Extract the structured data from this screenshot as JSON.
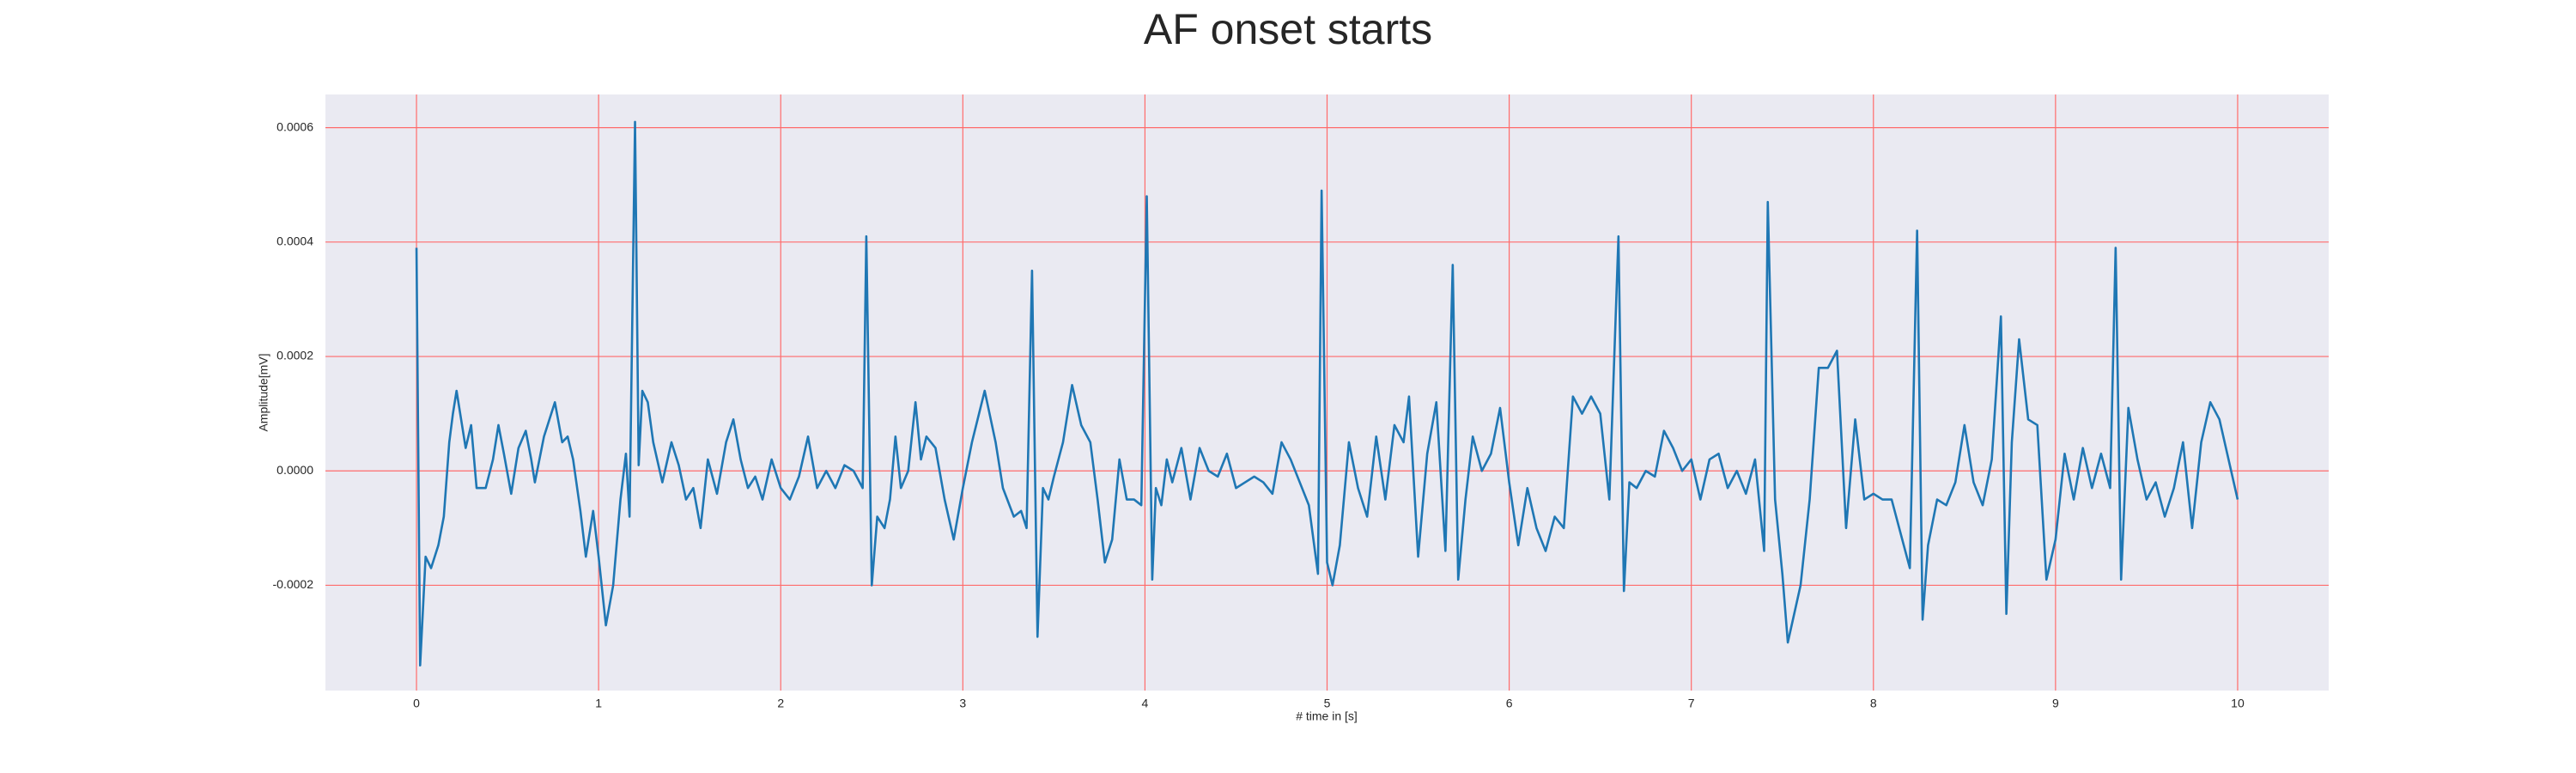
{
  "chart_data": {
    "type": "line",
    "title": "AF onset starts",
    "xlabel": "# time in [s]",
    "ylabel": "Amplitude[mV]",
    "color": "#1f77b4",
    "grid": true,
    "grid_color": "#ff6b6b",
    "xlim": [
      -0.5,
      10.5
    ],
    "xticks": [
      0,
      1,
      2,
      3,
      4,
      5,
      6,
      7,
      8,
      9,
      10
    ],
    "ylim": [
      -0.000384,
      0.000658
    ],
    "yticks": [
      -0.0002,
      {
        "value": 0,
        "label": "0.0000"
      },
      0.0002,
      0.0004,
      0.0006
    ],
    "x": [
      0,
      0.02,
      0.05,
      0.08,
      0.12,
      0.15,
      0.18,
      0.2,
      0.22,
      0.25,
      0.27,
      0.3,
      0.33,
      0.38,
      0.42,
      0.45,
      0.48,
      0.52,
      0.56,
      0.6,
      0.63,
      0.65,
      0.7,
      0.76,
      0.8,
      0.83,
      0.86,
      0.9,
      0.93,
      0.97,
      1.0,
      1.04,
      1.08,
      1.12,
      1.15,
      1.17,
      1.2,
      1.22,
      1.24,
      1.27,
      1.3,
      1.35,
      1.4,
      1.44,
      1.48,
      1.52,
      1.56,
      1.6,
      1.65,
      1.7,
      1.74,
      1.78,
      1.82,
      1.86,
      1.9,
      1.95,
      2.0,
      2.05,
      2.1,
      2.15,
      2.2,
      2.25,
      2.3,
      2.35,
      2.4,
      2.45,
      2.47,
      2.5,
      2.53,
      2.57,
      2.6,
      2.63,
      2.66,
      2.7,
      2.74,
      2.77,
      2.8,
      2.85,
      2.9,
      2.95,
      3.0,
      3.05,
      3.12,
      3.18,
      3.22,
      3.28,
      3.32,
      3.35,
      3.38,
      3.41,
      3.44,
      3.47,
      3.5,
      3.55,
      3.6,
      3.65,
      3.7,
      3.74,
      3.78,
      3.82,
      3.86,
      3.9,
      3.94,
      3.98,
      4.01,
      4.04,
      4.06,
      4.09,
      4.12,
      4.15,
      4.2,
      4.25,
      4.3,
      4.35,
      4.4,
      4.45,
      4.5,
      4.55,
      4.6,
      4.65,
      4.7,
      4.75,
      4.8,
      4.85,
      4.9,
      4.95,
      4.97,
      5.0,
      5.03,
      5.07,
      5.12,
      5.17,
      5.22,
      5.27,
      5.32,
      5.37,
      5.42,
      5.45,
      5.5,
      5.55,
      5.6,
      5.65,
      5.69,
      5.72,
      5.76,
      5.8,
      5.85,
      5.9,
      5.95,
      6.0,
      6.05,
      6.1,
      6.15,
      6.2,
      6.25,
      6.3,
      6.35,
      6.4,
      6.45,
      6.5,
      6.55,
      6.6,
      6.63,
      6.66,
      6.7,
      6.75,
      6.8,
      6.85,
      6.9,
      6.95,
      7.0,
      7.05,
      7.1,
      7.15,
      7.2,
      7.25,
      7.3,
      7.35,
      7.4,
      7.42,
      7.46,
      7.5,
      7.53,
      7.6,
      7.65,
      7.7,
      7.75,
      7.8,
      7.85,
      7.9,
      7.95,
      8.0,
      8.05,
      8.1,
      8.2,
      8.24,
      8.27,
      8.3,
      8.35,
      8.4,
      8.45,
      8.5,
      8.55,
      8.6,
      8.65,
      8.7,
      8.73,
      8.76,
      8.8,
      8.85,
      8.9,
      8.95,
      9.0,
      9.05,
      9.1,
      9.15,
      9.2,
      9.25,
      9.3,
      9.33,
      9.36,
      9.4,
      9.45,
      9.5,
      9.55,
      9.6,
      9.65,
      9.7,
      9.75,
      9.8,
      9.85,
      9.9,
      9.95,
      10.0
    ],
    "values": [
      0.00039,
      -0.00034,
      -0.00015,
      -0.00017,
      -0.00013,
      -8e-05,
      5e-05,
      0.0001,
      0.00014,
      8e-05,
      4e-05,
      8e-05,
      -3e-05,
      -3e-05,
      2e-05,
      8e-05,
      3e-05,
      -4e-05,
      4e-05,
      7e-05,
      2e-05,
      -2e-05,
      6e-05,
      0.00012,
      5e-05,
      6e-05,
      2e-05,
      -7e-05,
      -0.00015,
      -7e-05,
      -0.00015,
      -0.00027,
      -0.0002,
      -5e-05,
      3e-05,
      -8e-05,
      0.00061,
      1e-05,
      0.00014,
      0.00012,
      5e-05,
      -2e-05,
      5e-05,
      1e-05,
      -5e-05,
      -3e-05,
      -0.0001,
      2e-05,
      -4e-05,
      5e-05,
      9e-05,
      2e-05,
      -3e-05,
      -1e-05,
      -5e-05,
      2e-05,
      -3e-05,
      -5e-05,
      -1e-05,
      6e-05,
      -3e-05,
      0,
      -3e-05,
      1e-05,
      0,
      -3e-05,
      0.00041,
      -0.0002,
      -8e-05,
      -0.0001,
      -5e-05,
      6e-05,
      -3e-05,
      0,
      0.00012,
      2e-05,
      6e-05,
      4e-05,
      -5e-05,
      -0.00012,
      -3e-05,
      5e-05,
      0.00014,
      5e-05,
      -3e-05,
      -8e-05,
      -7e-05,
      -0.0001,
      0.00035,
      -0.00029,
      -3e-05,
      -5e-05,
      -1e-05,
      5e-05,
      0.00015,
      8e-05,
      5e-05,
      -5e-05,
      -0.00016,
      -0.00012,
      2e-05,
      -5e-05,
      -5e-05,
      -6e-05,
      0.00048,
      -0.00019,
      -3e-05,
      -6e-05,
      2e-05,
      -2e-05,
      4e-05,
      -5e-05,
      4e-05,
      0,
      -1e-05,
      3e-05,
      -3e-05,
      -2e-05,
      -1e-05,
      -2e-05,
      -4e-05,
      5e-05,
      2e-05,
      -2e-05,
      -6e-05,
      -0.00018,
      0.00049,
      -0.00016,
      -0.0002,
      -0.00013,
      5e-05,
      -3e-05,
      -8e-05,
      6e-05,
      -5e-05,
      8e-05,
      5e-05,
      0.00013,
      -0.00015,
      3e-05,
      0.00012,
      -0.00014,
      0.00036,
      -0.00019,
      -5e-05,
      6e-05,
      0,
      3e-05,
      0.00011,
      -2e-05,
      -0.00013,
      -3e-05,
      -0.0001,
      -0.00014,
      -8e-05,
      -0.0001,
      0.00013,
      0.0001,
      0.00013,
      0.0001,
      -5e-05,
      0.00041,
      -0.00021,
      -2e-05,
      -3e-05,
      0,
      -1e-05,
      7e-05,
      4e-05,
      0,
      2e-05,
      -5e-05,
      2e-05,
      3e-05,
      -3e-05,
      0,
      -4e-05,
      2e-05,
      -0.00014,
      0.00047,
      -5e-05,
      -0.00018,
      -0.0003,
      -0.0002,
      -5e-05,
      0.00018,
      0.00018,
      0.00021,
      -0.0001,
      9e-05,
      -5e-05,
      -4e-05,
      -5e-05,
      -5e-05,
      -0.00017,
      0.00042,
      -0.00026,
      -0.00013,
      -5e-05,
      -6e-05,
      -2e-05,
      8e-05,
      -2e-05,
      -6e-05,
      2e-05,
      0.00027,
      -0.00025,
      5e-05,
      0.00023,
      9e-05,
      8e-05,
      -0.00019,
      -0.00012,
      3e-05,
      -5e-05,
      4e-05,
      -3e-05,
      3e-05,
      -3e-05,
      0.00039,
      -0.00019,
      0.00011,
      2e-05,
      -5e-05,
      -2e-05,
      -8e-05,
      -3e-05,
      5e-05,
      -0.0001,
      5e-05,
      0.00012,
      9e-05,
      2e-05,
      -5e-05
    ]
  }
}
